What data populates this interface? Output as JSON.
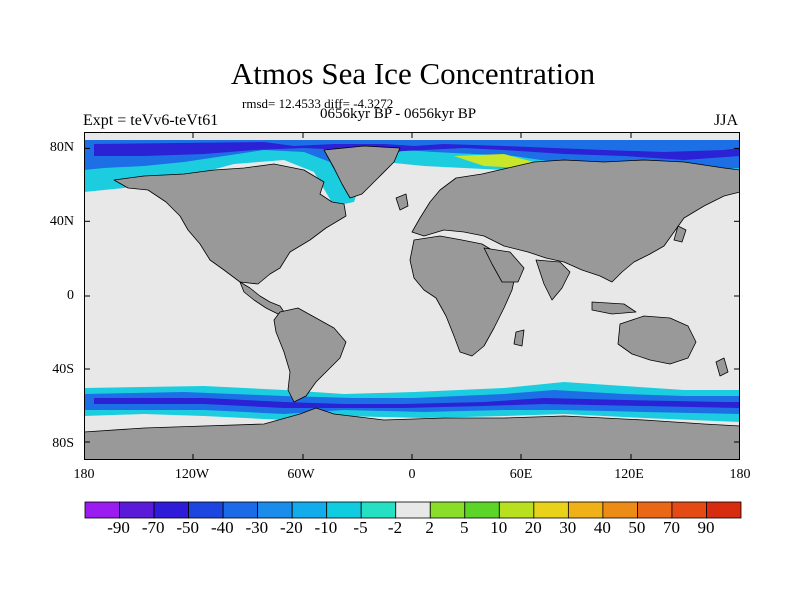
{
  "header": {
    "title": "Atmos Sea Ice Concentration",
    "stats": "rmsd= 12.4533 diff= -4.3272",
    "period": "0656kyr BP - 0656kyr BP",
    "expt": "Expt = teVv6-teVt61",
    "season": "JJA"
  },
  "axes": {
    "lat_labels": [
      "80N",
      "40N",
      "0",
      "40S",
      "80S"
    ],
    "lon_labels": [
      "180",
      "120W",
      "60W",
      "0",
      "60E",
      "120E",
      "180"
    ]
  },
  "colorbar": {
    "labels": [
      "-90",
      "-70",
      "-50",
      "-40",
      "-30",
      "-20",
      "-10",
      "-5",
      "-2",
      "2",
      "5",
      "10",
      "20",
      "30",
      "40",
      "50",
      "70",
      "90"
    ],
    "colors": [
      "#9a1cf0",
      "#5b1ad8",
      "#2f1cd9",
      "#1d46e0",
      "#1b6ae8",
      "#1a8cec",
      "#12acec",
      "#0fcce0",
      "#25e0c2",
      "#e8e8e8",
      "#8ade2a",
      "#5cd428",
      "#b8e01e",
      "#e8d21a",
      "#f0b018",
      "#ec8c16",
      "#e86818",
      "#e44a14",
      "#d82c10"
    ]
  },
  "colors": {
    "land": "#999999",
    "ocean": "#e8e8e8",
    "ice_deep": "#2a22d4",
    "ice_mid": "#1d6fe6",
    "ice_light": "#1ccde0",
    "ice_gain": "#c8e62a"
  }
}
